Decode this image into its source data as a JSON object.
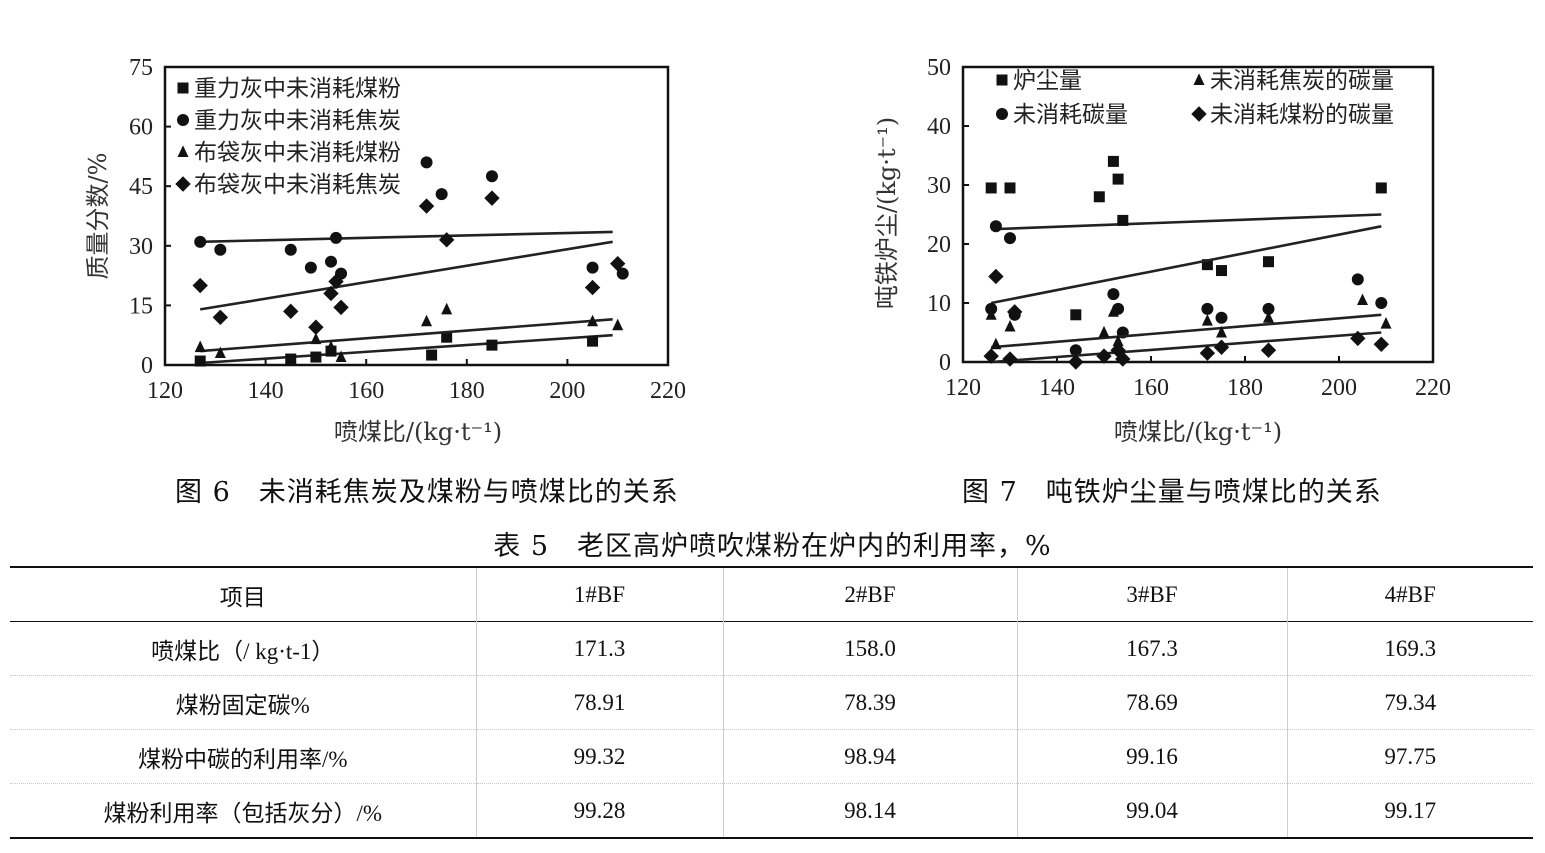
{
  "chart_data": [
    {
      "type": "scatter",
      "title": "未消耗焦炭及煤粉与喷煤比的关系",
      "xlabel": "喷煤比/(kg·t⁻¹)",
      "ylabel": "质量分数/%",
      "xlim": [
        120,
        220
      ],
      "ylim": [
        0,
        75
      ],
      "xticks": [
        120,
        140,
        160,
        180,
        200,
        220
      ],
      "yticks": [
        0,
        15,
        30,
        45,
        60,
        75
      ],
      "legend_position": "top-left",
      "series": [
        {
          "name": "重力灰中未消耗煤粉",
          "marker": "square",
          "x": [
            127,
            145,
            150,
            153,
            173,
            176,
            185,
            205
          ],
          "y": [
            1,
            1.5,
            2,
            3.5,
            2.5,
            7,
            5,
            6
          ],
          "trend": [
            [
              127,
              0.5
            ],
            [
              209,
              7.5
            ]
          ]
        },
        {
          "name": "重力灰中未消耗焦炭",
          "marker": "circle",
          "x": [
            127,
            131,
            145,
            149,
            153,
            154,
            155,
            172,
            175,
            185,
            205,
            211
          ],
          "y": [
            31,
            29,
            29,
            24.5,
            26,
            32,
            23,
            51,
            43,
            47.5,
            24.5,
            23
          ],
          "trend": [
            [
              127,
              31
            ],
            [
              209,
              33.5
            ]
          ]
        },
        {
          "name": "布袋灰中未消耗煤粉",
          "marker": "triangle",
          "x": [
            127,
            131,
            150,
            153,
            155,
            172,
            176,
            205,
            210
          ],
          "y": [
            4.5,
            3,
            6.5,
            4.5,
            2,
            11,
            14,
            11,
            10
          ],
          "trend": [
            [
              127,
              3.5
            ],
            [
              209,
              11.5
            ]
          ]
        },
        {
          "name": "布袋灰中未消耗焦炭",
          "marker": "diamond",
          "x": [
            127,
            131,
            145,
            150,
            153,
            154,
            155,
            172,
            176,
            185,
            205,
            210
          ],
          "y": [
            20,
            12,
            13.5,
            9.5,
            18,
            21,
            14.5,
            40,
            31.5,
            42,
            19.5,
            25.5
          ],
          "trend": [
            [
              127,
              14
            ],
            [
              209,
              31
            ]
          ]
        }
      ]
    },
    {
      "type": "scatter",
      "title": "吨铁炉尘量与喷煤比的关系",
      "xlabel": "喷煤比/(kg·t⁻¹)",
      "ylabel": "吨铁炉尘/(kg·t⁻¹)",
      "xlim": [
        120,
        220
      ],
      "ylim": [
        0,
        50
      ],
      "xticks": [
        120,
        140,
        160,
        180,
        200,
        220
      ],
      "yticks": [
        0,
        10,
        20,
        30,
        40,
        50
      ],
      "legend_position": "top",
      "series": [
        {
          "name": "炉尘量",
          "marker": "square",
          "x": [
            126,
            130,
            144,
            149,
            152,
            153,
            154,
            172,
            175,
            185,
            209
          ],
          "y": [
            29.5,
            29.5,
            8,
            28,
            34,
            31,
            24,
            16.5,
            15.5,
            17,
            29.5
          ],
          "trend": [
            [
              126,
              22.5
            ],
            [
              209,
              25
            ]
          ]
        },
        {
          "name": "未消耗碳量",
          "marker": "circle",
          "x": [
            126,
            127,
            130,
            131,
            144,
            152,
            153,
            154,
            172,
            175,
            185,
            204,
            209
          ],
          "y": [
            9,
            23,
            21,
            8,
            2,
            11.5,
            9,
            5,
            9,
            7.5,
            9,
            14,
            10
          ],
          "trend": [
            [
              126,
              10
            ],
            [
              209,
              23
            ]
          ]
        },
        {
          "name": "未消耗焦炭的碳量",
          "marker": "triangle",
          "x": [
            126,
            127,
            130,
            150,
            152,
            153,
            172,
            175,
            185,
            205,
            210
          ],
          "y": [
            8,
            3,
            6,
            5,
            8.5,
            3.5,
            7,
            5,
            7.5,
            10.5,
            6.5
          ],
          "trend": [
            [
              126,
              2.5
            ],
            [
              209,
              8
            ]
          ]
        },
        {
          "name": "未消耗煤粉的碳量",
          "marker": "diamond",
          "x": [
            126,
            127,
            130,
            131,
            144,
            150,
            153,
            154,
            172,
            175,
            185,
            204,
            209
          ],
          "y": [
            1,
            14.5,
            0.5,
            8.5,
            0,
            1,
            2,
            0.5,
            1.5,
            2.5,
            2,
            4,
            3
          ],
          "trend": [
            [
              126,
              0
            ],
            [
              209,
              5
            ]
          ]
        }
      ]
    }
  ],
  "figures": {
    "fig6_caption": "图 6　未消耗焦炭及煤粉与喷煤比的关系",
    "fig7_caption": "图 7　吨铁炉尘量与喷煤比的关系"
  },
  "table": {
    "title": "表 5　老区高炉喷吹煤粉在炉内的利用率，%",
    "headers": [
      "项目",
      "1#BF",
      "2#BF",
      "3#BF",
      "4#BF"
    ],
    "rows": [
      [
        "喷煤比（/ kg·t-1）",
        "171.3",
        "158.0",
        "167.3",
        "169.3"
      ],
      [
        "煤粉固定碳%",
        "78.91",
        "78.39",
        "78.69",
        "79.34"
      ],
      [
        "煤粉中碳的利用率/%",
        "99.32",
        "98.94",
        "99.16",
        "97.75"
      ],
      [
        "煤粉利用率（包括灰分）/%",
        "99.28",
        "98.14",
        "99.04",
        "99.17"
      ]
    ]
  }
}
